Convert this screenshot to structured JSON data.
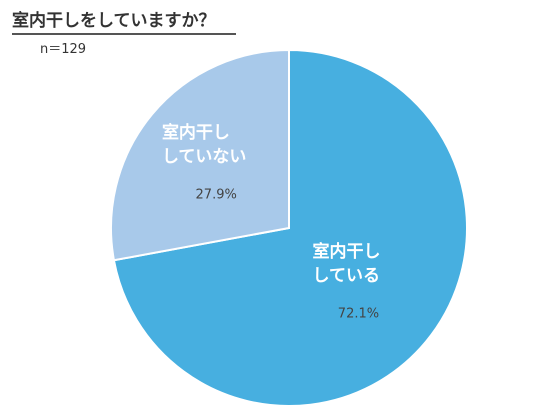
{
  "chart_data": {
    "type": "pie",
    "title": "室内干しをしていますか？",
    "subtitle": "n＝129",
    "categories": [
      "室内干し\nしている",
      "室内干し\nしていない"
    ],
    "values": [
      72.1,
      27.9
    ],
    "value_labels": [
      "72.1%",
      "27.9%"
    ],
    "colors": [
      "#47afe0",
      "#a8c9ea"
    ]
  }
}
